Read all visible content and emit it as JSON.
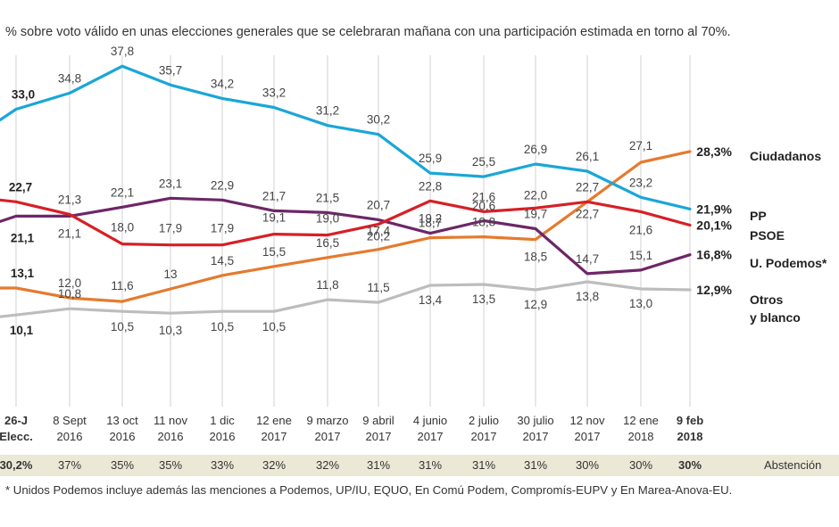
{
  "subtitle": "% sobre voto válido en unas elecciones generales que se celebraran mañana con una participación estimada en torno al 70%.",
  "chart_data": {
    "type": "line",
    "categories": [
      [
        "26-J",
        "Elecc."
      ],
      [
        "8 Sept",
        "2016"
      ],
      [
        "13 oct",
        "2016"
      ],
      [
        "11 nov",
        "2016"
      ],
      [
        "1 dic",
        "2016"
      ],
      [
        "12 ene",
        "2017"
      ],
      [
        "9 marzo",
        "2017"
      ],
      [
        "9 abril",
        "2017"
      ],
      [
        "4 junio",
        "2017"
      ],
      [
        "2 julio",
        "2017"
      ],
      [
        "30 julio",
        "2017"
      ],
      [
        "12 nov",
        "2017"
      ],
      [
        "12 ene",
        "2018"
      ],
      [
        "9 feb",
        "2018"
      ]
    ],
    "ylim": [
      0,
      40
    ],
    "series": [
      {
        "name": "PP",
        "color": "#1aa6d8",
        "values": [
          33.0,
          34.8,
          37.8,
          35.7,
          34.2,
          33.2,
          31.2,
          30.2,
          25.9,
          25.5,
          26.9,
          26.1,
          23.2,
          21.9
        ],
        "labels": [
          "33,0",
          "34,8",
          "37,8",
          "35,7",
          "34,2",
          "33,2",
          "31,2",
          "30,2",
          "25,9",
          "25,5",
          "26,9",
          "26,1",
          "23,2",
          "21,9%"
        ]
      },
      {
        "name": "Ciudadanos",
        "color": "#e57a2e",
        "values": [
          13.1,
          12.0,
          11.6,
          13.0,
          14.5,
          15.5,
          16.5,
          17.4,
          18.7,
          18.8,
          18.5,
          22.7,
          27.1,
          28.3
        ],
        "labels": [
          "13,1",
          "12,0",
          "11,6",
          "13",
          "14,5",
          "15,5",
          "16,5",
          "17,4",
          "18,7",
          "18,8",
          "18,5",
          "22,7",
          "27,1",
          "28,3%"
        ]
      },
      {
        "name": "PSOE",
        "color": "#d71f26",
        "values": [
          22.7,
          21.3,
          18.0,
          17.9,
          17.9,
          19.1,
          19.0,
          20.2,
          22.8,
          21.6,
          22.0,
          22.7,
          21.6,
          20.1
        ],
        "labels": [
          "22,7",
          "21,3",
          "18,0",
          "17,9",
          "17,9",
          "19,1",
          "19,0",
          "20,2",
          "22,8",
          "21,6",
          "22,0",
          "22,7",
          "21,6",
          "20,1%"
        ]
      },
      {
        "name": "U. Podemos*",
        "color": "#6d2668",
        "values": [
          21.1,
          21.1,
          22.1,
          23.1,
          22.9,
          21.7,
          21.5,
          20.7,
          19.2,
          20.6,
          19.7,
          14.7,
          15.1,
          16.8
        ],
        "labels": [
          "21,1",
          "21,1",
          "22,1",
          "23,1",
          "22,9",
          "21,7",
          "21,5",
          "20,7",
          "19,2",
          "20,6",
          "19,7",
          "14,7",
          "15,1",
          "16,8%"
        ]
      },
      {
        "name": "Otros y blanco",
        "color": "#bdbdbd",
        "values": [
          10.1,
          10.8,
          10.5,
          10.3,
          10.5,
          10.5,
          11.8,
          11.5,
          13.4,
          13.5,
          12.9,
          13.8,
          13.0,
          12.9
        ],
        "labels": [
          "10,1",
          "10,8",
          "10,5",
          "10,3",
          "10,5",
          "10,5",
          "11,8",
          "11,5",
          "13,4",
          "13,5",
          "12,9",
          "13,8",
          "13,0",
          "12,9%"
        ]
      }
    ],
    "series_labels": [
      {
        "lines": [
          "Ciudadanos"
        ]
      },
      {
        "lines": [
          "PP"
        ]
      },
      {
        "lines": [
          "PSOE"
        ]
      },
      {
        "lines": [
          "U. Podemos*"
        ]
      },
      {
        "lines": [
          "Otros",
          "y blanco"
        ]
      }
    ]
  },
  "abstention": {
    "values": [
      "30,2%",
      "37%",
      "35%",
      "35%",
      "33%",
      "32%",
      "32%",
      "31%",
      "31%",
      "31%",
      "31%",
      "30%",
      "30%",
      "30%"
    ],
    "label": "Abstención"
  },
  "footnote": "* Unidos Podemos incluye además las menciones a Podemos, UP/IU, EQUO, En Comú Podem, Compromís-EUPV y En Marea-Anova-EU."
}
